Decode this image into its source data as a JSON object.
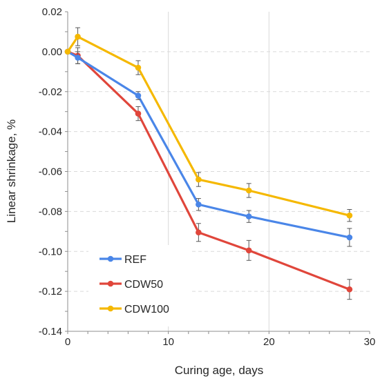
{
  "chart_data": {
    "type": "line",
    "title": "",
    "xlabel": "Curing age, days",
    "ylabel": "Linear shrinkage, %",
    "xlim": [
      0,
      30
    ],
    "ylim": [
      -0.14,
      0.02
    ],
    "xticks": [
      "0",
      "10",
      "20",
      "30"
    ],
    "yticks": [
      "0.02",
      "0.00",
      "-0.02",
      "-0.04",
      "-0.06",
      "-0.08",
      "-0.10",
      "-0.12",
      "-0.14"
    ],
    "grid": true,
    "legend_position": "bottom-left",
    "series": [
      {
        "name": "REF",
        "color": "#4a86e8",
        "x": [
          0,
          1,
          7,
          13,
          18,
          28
        ],
        "y": [
          0.0,
          -0.003,
          -0.022,
          -0.0765,
          -0.0825,
          -0.093
        ],
        "err": [
          0,
          0.003,
          0.002,
          0.003,
          0.003,
          0.0045
        ]
      },
      {
        "name": "CDW50",
        "color": "#e0463b",
        "x": [
          0,
          1,
          7,
          13,
          18,
          28
        ],
        "y": [
          0.0,
          -0.002,
          -0.031,
          -0.0905,
          -0.0995,
          -0.119
        ],
        "err": [
          0,
          0.004,
          0.0035,
          0.0045,
          0.005,
          0.005
        ]
      },
      {
        "name": "CDW100",
        "color": "#f5b800",
        "x": [
          0,
          1,
          7,
          13,
          18,
          28
        ],
        "y": [
          0.0,
          0.0075,
          -0.008,
          -0.064,
          -0.0695,
          -0.082
        ],
        "err": [
          0,
          0.0045,
          0.0035,
          0.0035,
          0.0035,
          0.003
        ]
      }
    ]
  }
}
